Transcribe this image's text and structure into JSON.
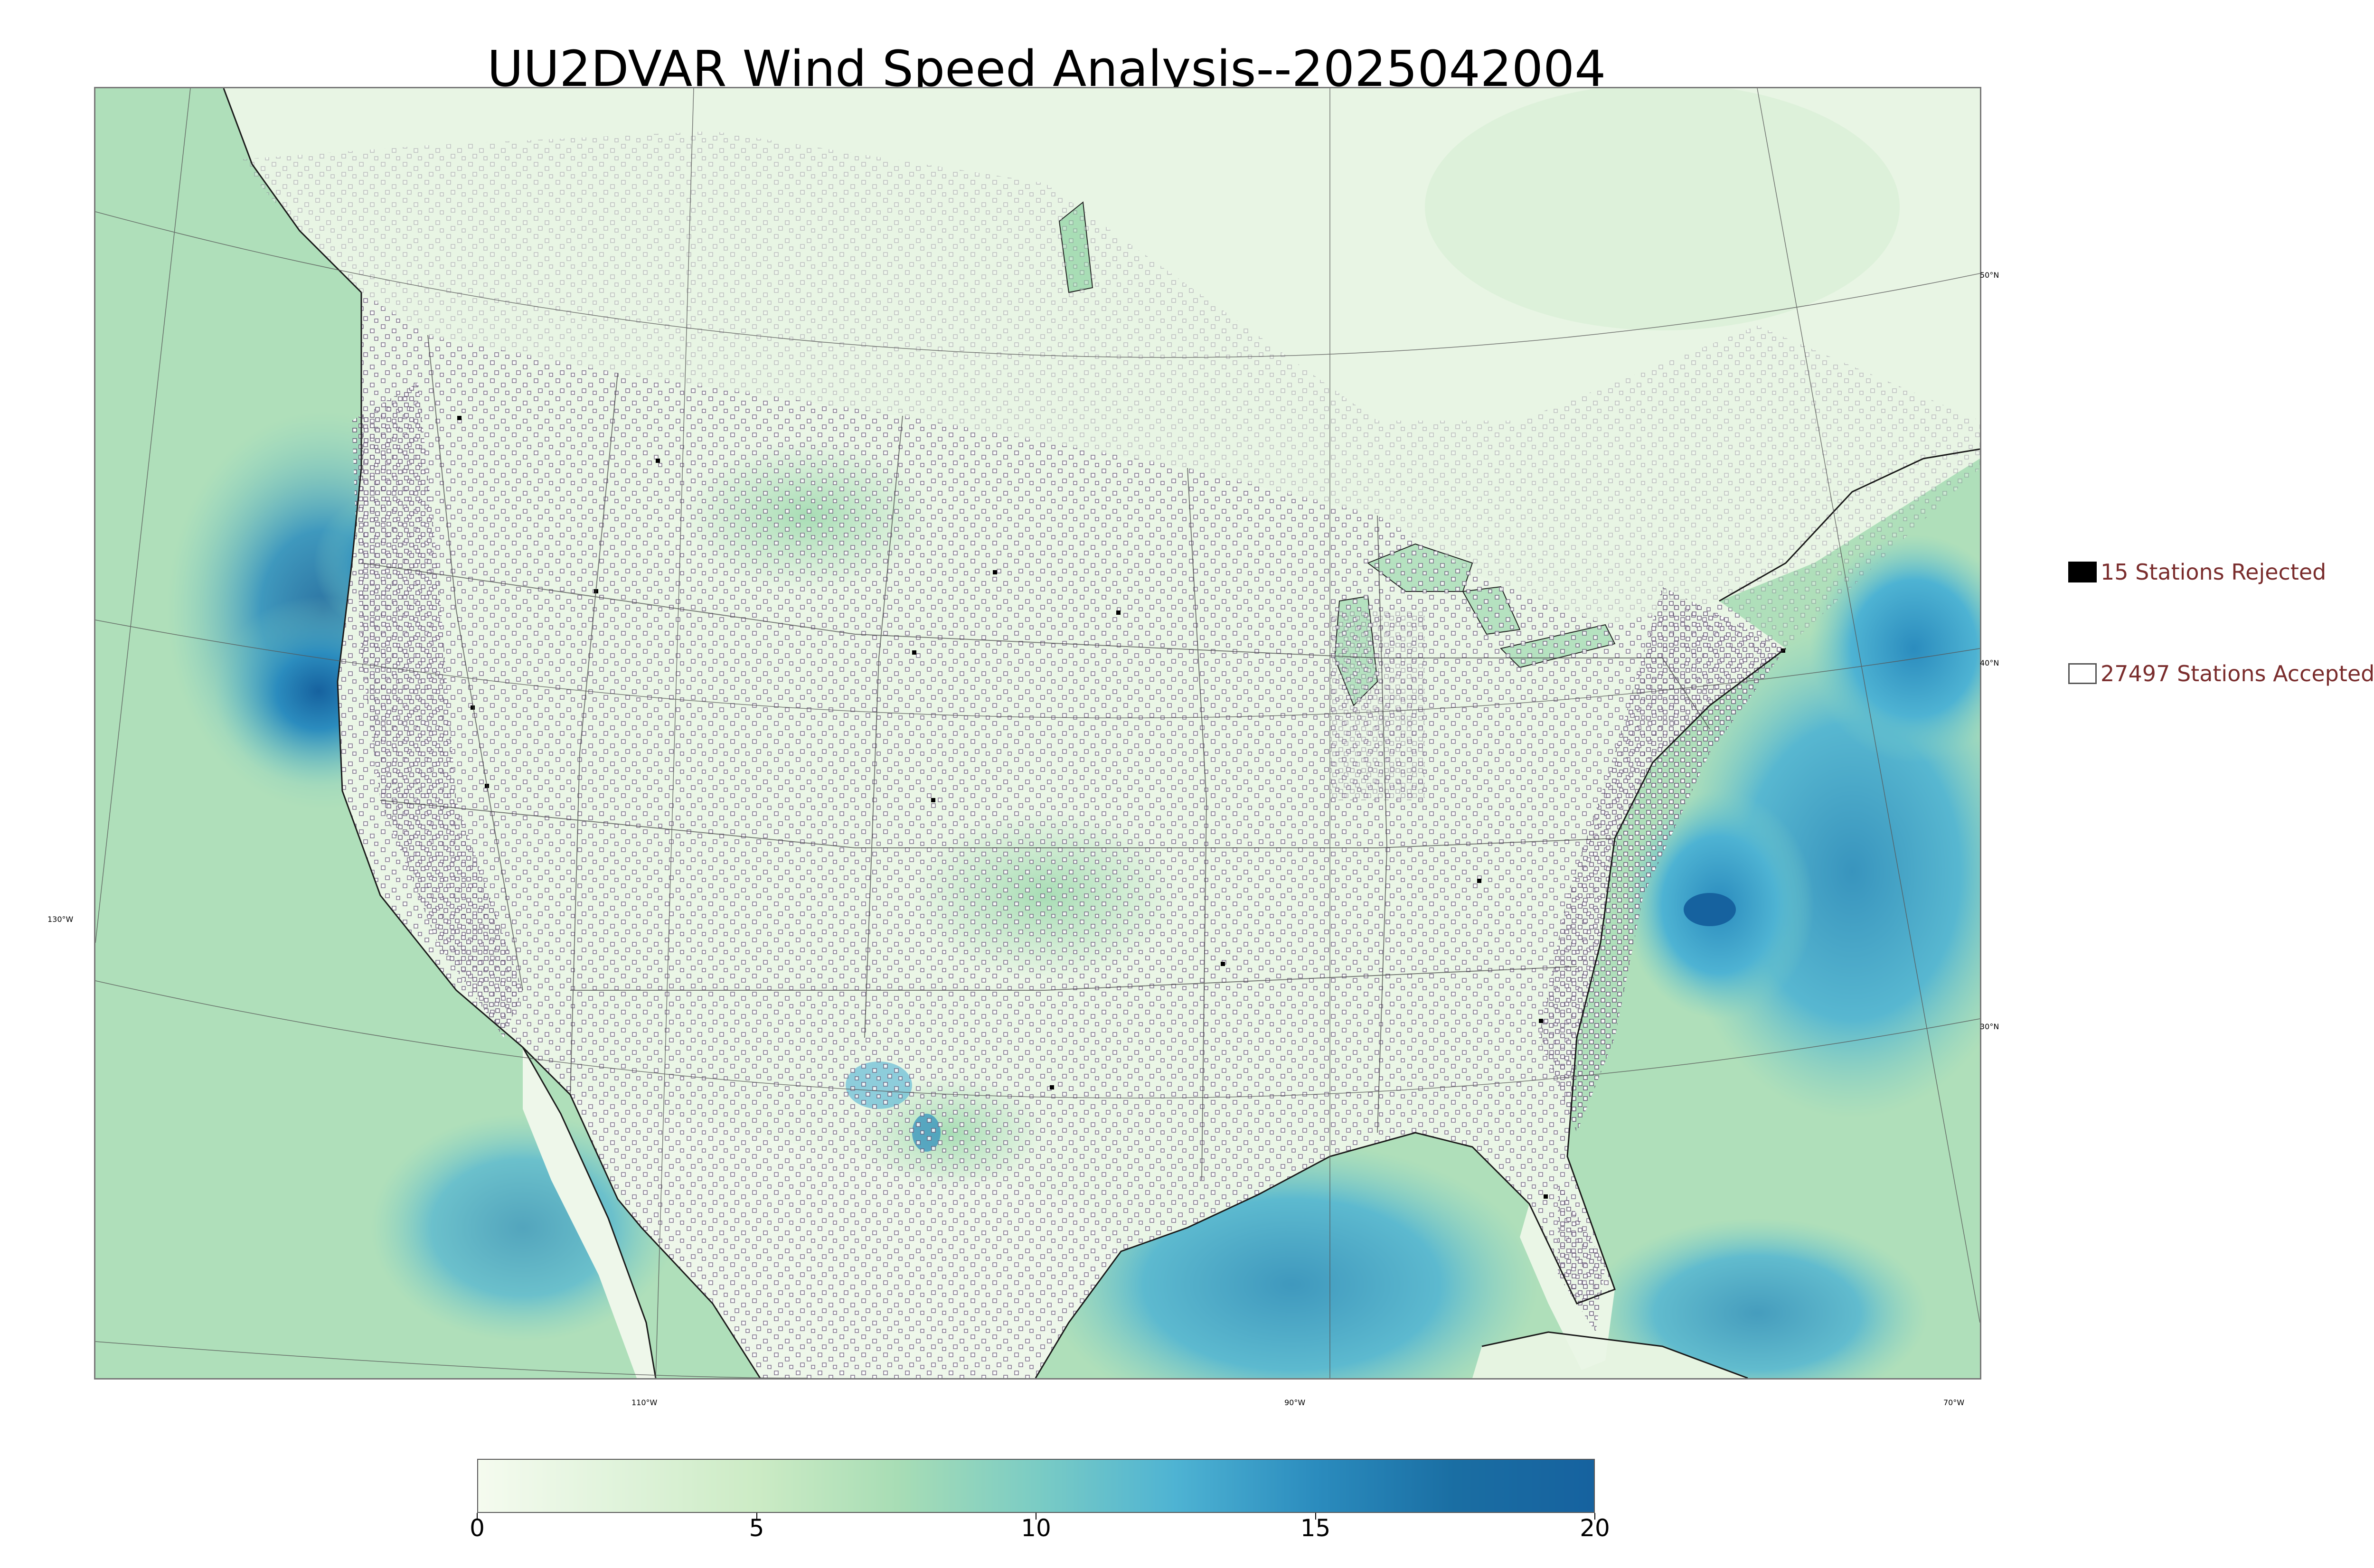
{
  "title": "UU2DVAR Wind Speed Analysis--2025042004",
  "lat_labels": [
    "50°N",
    "40°N",
    "30°N"
  ],
  "lon_labels": [
    "130°W",
    "110°W",
    "90°W",
    "70°W"
  ],
  "legend": {
    "rejected": "15 Stations Rejected",
    "accepted": "27497 Stations Accepted"
  },
  "colorbar": {
    "min": 0,
    "max": 20,
    "ticks": [
      "0",
      "5",
      "10",
      "15",
      "20"
    ],
    "colors": [
      "#f5fbef",
      "#e0f3db",
      "#ccebc5",
      "#a8ddb5",
      "#7bccc4",
      "#4eb3d3",
      "#2b8cbe",
      "#1a6ea3",
      "#16629f"
    ]
  },
  "station_counts": {
    "rejected": 15,
    "accepted": 27497
  },
  "map": {
    "ocean_color": "#9ed6cb",
    "land_color": "#e6f4e1",
    "high_wind_color": "#2f87c0",
    "station_marker_color": "#6a5a7a"
  }
}
